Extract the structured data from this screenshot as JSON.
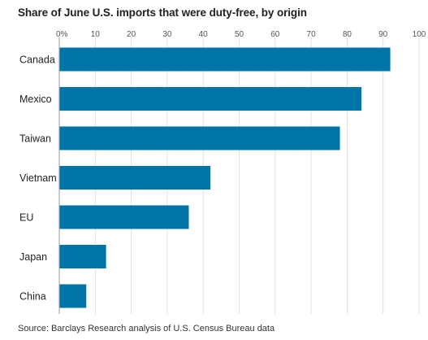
{
  "chart_data": {
    "type": "bar",
    "orientation": "horizontal",
    "title": "Share of June U.S. imports that were duty-free, by origin",
    "source": "Source: Barclays Research analysis of U.S. Census Bureau data",
    "categories": [
      "Canada",
      "Mexico",
      "Taiwan",
      "Vietnam",
      "EU",
      "Japan",
      "China"
    ],
    "values": [
      92,
      84,
      78,
      42,
      36,
      13,
      7.5
    ],
    "x_ticks": [
      "0%",
      "10",
      "20",
      "30",
      "40",
      "50",
      "60",
      "70",
      "80",
      "90",
      "100"
    ],
    "xlim": [
      0,
      100
    ],
    "grid": true,
    "bar_color": "#0074a6",
    "gridline_color": "#e2e2e2",
    "axis_color": "#999999"
  }
}
